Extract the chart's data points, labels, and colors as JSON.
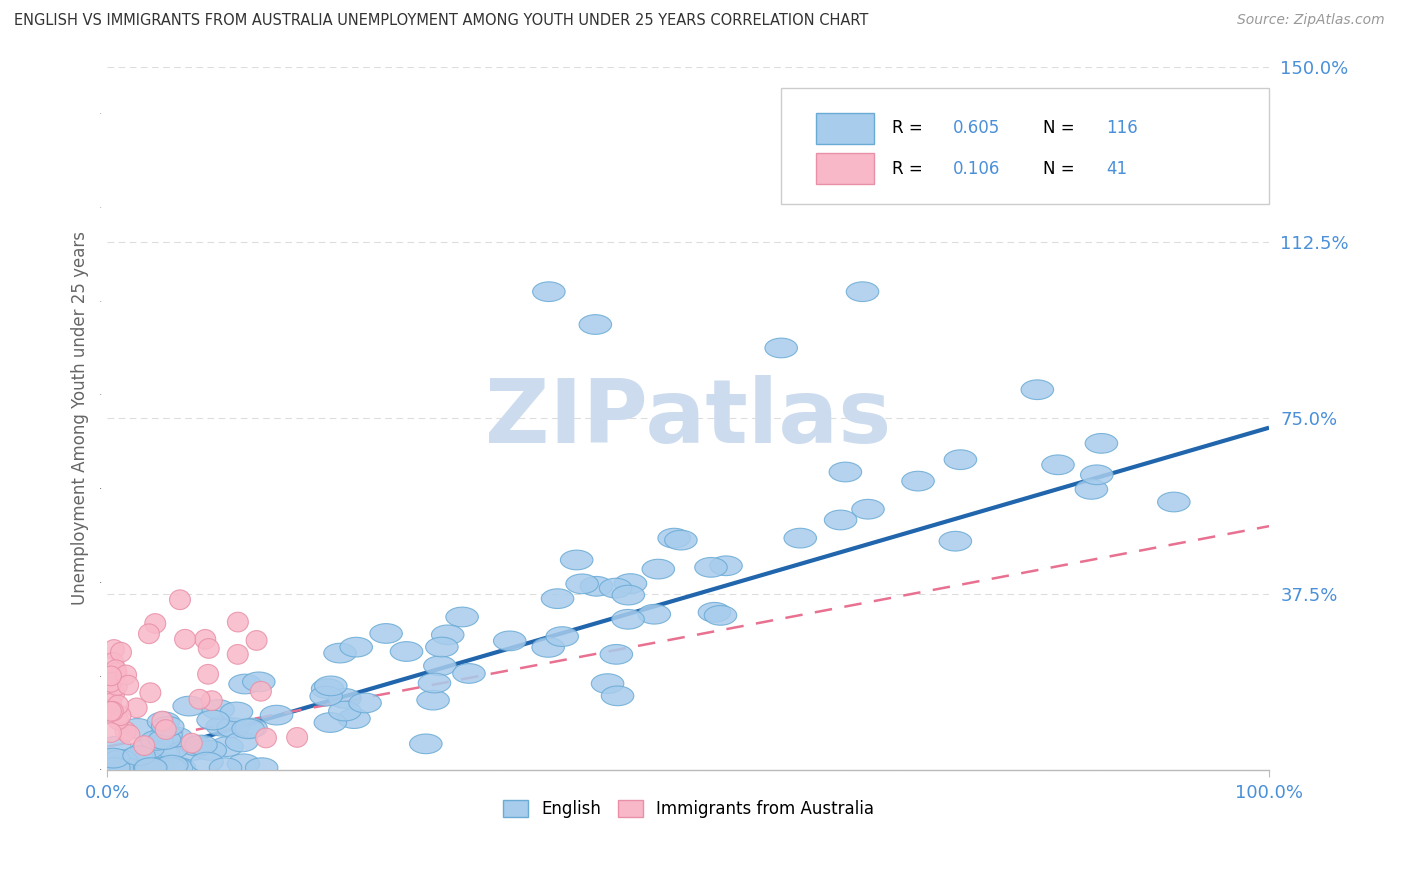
{
  "title": "ENGLISH VS IMMIGRANTS FROM AUSTRALIA UNEMPLOYMENT AMONG YOUTH UNDER 25 YEARS CORRELATION CHART",
  "source": "Source: ZipAtlas.com",
  "ylabel": "Unemployment Among Youth under 25 years",
  "xlim": [
    0,
    1.0
  ],
  "ylim": [
    0,
    1.5
  ],
  "ytick_values": [
    0.0,
    0.375,
    0.75,
    1.125,
    1.5
  ],
  "ytick_labels": [
    "",
    "37.5%",
    "75.0%",
    "112.5%",
    "150.0%"
  ],
  "R_english": 0.605,
  "N_english": 116,
  "R_immigrants": 0.106,
  "N_immigrants": 41,
  "english_color": "#a8ccec",
  "english_edge_color": "#6aabd6",
  "immigrants_color": "#f8b8c8",
  "immigrants_edge_color": "#e890a8",
  "trendline_english_color": "#2166ac",
  "trendline_immigrants_color": "#e87090",
  "watermark": "ZIPatlas",
  "watermark_color": "#ccdcee",
  "background_color": "#ffffff",
  "title_color": "#333333",
  "axis_label_color": "#666666",
  "tick_label_color": "#4a90d9",
  "legend_R_color": "#4a90d9",
  "legend_N_color": "#4a90d9"
}
